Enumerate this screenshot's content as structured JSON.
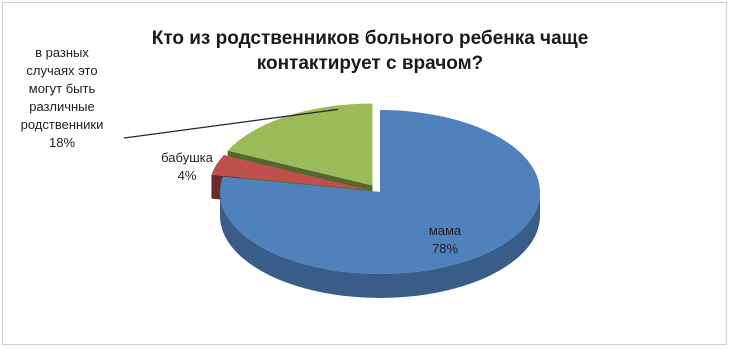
{
  "chart_data": {
    "type": "pie",
    "title": "Кто из родственников больного ребенка чаще контактирует с врачом?",
    "three_d": true,
    "exploded": true,
    "slices": [
      {
        "name": "мама",
        "value": 78,
        "label_lines": [
          "мама",
          "78%"
        ],
        "color": "#4f81bd"
      },
      {
        "name": "бабушка",
        "value": 4,
        "label_lines": [
          "бабушка",
          "4%"
        ],
        "color": "#c0504d"
      },
      {
        "name": "в разных случаях это могут быть различные родственники",
        "value": 18,
        "label_lines": [
          "в разных",
          "случаях это",
          "могут быть",
          "различные",
          "родственники",
          "18%"
        ],
        "color": "#9bbb59"
      }
    ]
  }
}
